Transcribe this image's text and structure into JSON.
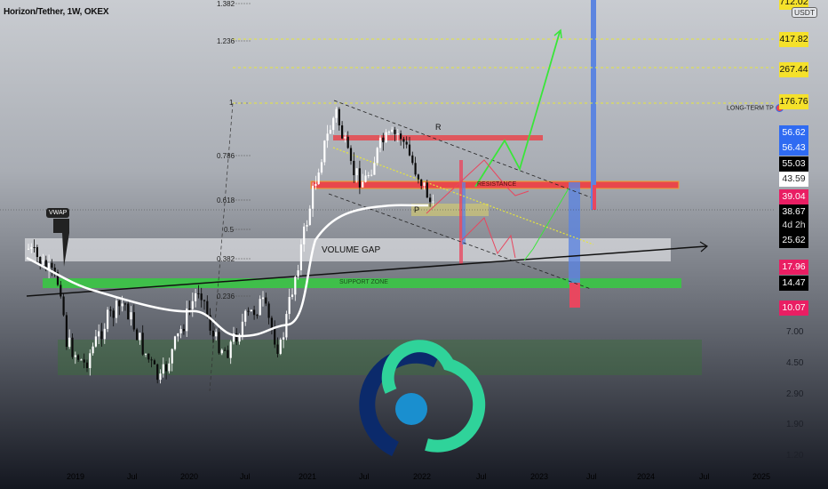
{
  "header": {
    "symbol_title": "Horizon/Tether, 1W, OKEX",
    "currency": "USDT"
  },
  "fib_levels": [
    "1.382",
    "1.236",
    "1",
    "0.786",
    "0.618",
    "0.5",
    "0.382",
    "0.236"
  ],
  "price_tags": [
    {
      "value": "712.02",
      "bg": "#f5e12b",
      "fg": "#111"
    },
    {
      "value": "417.82",
      "bg": "#f5e12b",
      "fg": "#111"
    },
    {
      "value": "267.44",
      "bg": "#f5e12b",
      "fg": "#111"
    },
    {
      "value": "176.76",
      "bg": "#f5e12b",
      "fg": "#111"
    },
    {
      "value": "56.62",
      "bg": "#2f6bf2",
      "fg": "#fff"
    },
    {
      "value": "56.43",
      "bg": "#2f6bf2",
      "fg": "#fff"
    },
    {
      "value": "55.03",
      "bg": "#000000",
      "fg": "#fff"
    },
    {
      "value": "43.59",
      "bg": "#ffffff",
      "fg": "#222"
    },
    {
      "value": "39.04",
      "bg": "#e91e63",
      "fg": "#fff"
    },
    {
      "value": "38.67",
      "bg": "#000000",
      "fg": "#fff"
    },
    {
      "value": "4d 2h",
      "bg": "#000000",
      "fg": "#ddd"
    },
    {
      "value": "25.62",
      "bg": "#000000",
      "fg": "#fff"
    },
    {
      "value": "17.96",
      "bg": "#e91e63",
      "fg": "#fff"
    },
    {
      "value": "14.47",
      "bg": "#000000",
      "fg": "#fff"
    },
    {
      "value": "10.07",
      "bg": "#e91e63",
      "fg": "#fff"
    }
  ],
  "price_scale": [
    "7.00",
    "4.50",
    "2.90",
    "1.90",
    "1.20"
  ],
  "time_axis": [
    "2019",
    "Jul",
    "2020",
    "Jul",
    "2021",
    "Jul",
    "2022",
    "Jul",
    "2023",
    "Jul",
    "2024",
    "Jul",
    "2025"
  ],
  "annotations": {
    "vwap": "VWAP",
    "volume_gap": "VOLUME GAP",
    "support": "SUPPORT ZONE",
    "resistance": "RESISTANCE",
    "r": "R",
    "p": "P",
    "long_term_tp": "LONG-TERM TP"
  },
  "colors": {
    "resistance": "#e8474c",
    "support": "#3fbf4a",
    "volume_gap": "#d9dbdf",
    "bullish_path": "#39e639",
    "bearish_path": "#e8475f",
    "fib_line": "#e6e63a"
  }
}
